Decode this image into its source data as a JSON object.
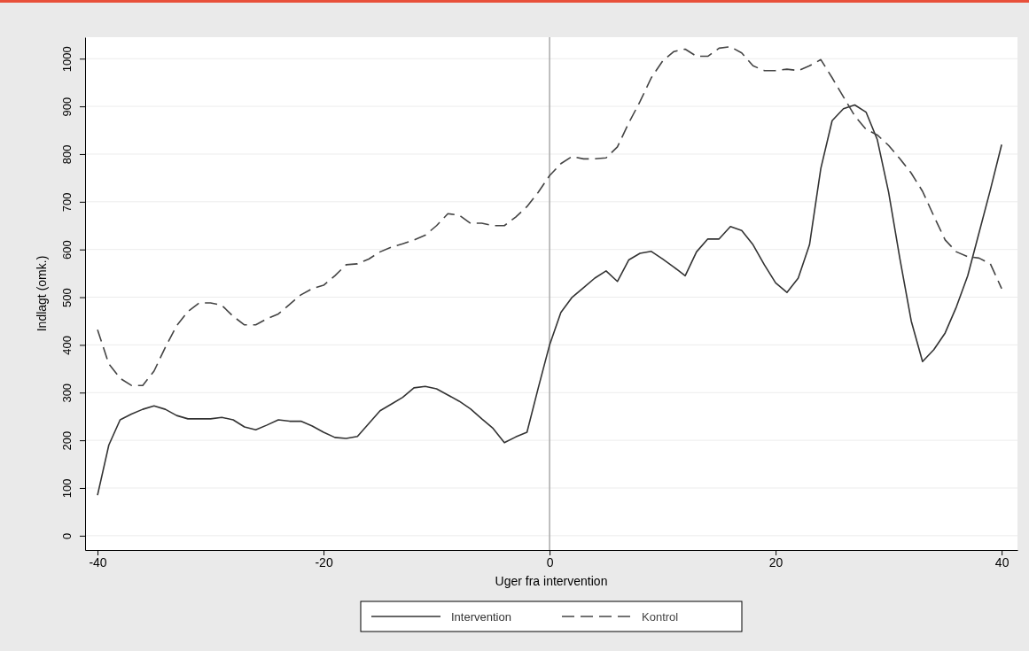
{
  "chart_data": {
    "type": "line",
    "xlabel": "Uger fra intervention",
    "ylabel": "Indlagt (omk.)",
    "x": [
      -40,
      -39,
      -38,
      -37,
      -36,
      -35,
      -34,
      -33,
      -32,
      -31,
      -30,
      -29,
      -28,
      -27,
      -26,
      -25,
      -24,
      -23,
      -22,
      -21,
      -20,
      -19,
      -18,
      -17,
      -16,
      -15,
      -14,
      -13,
      -12,
      -11,
      -10,
      -9,
      -8,
      -7,
      -6,
      -5,
      -4,
      -3,
      -2,
      -1,
      0,
      1,
      2,
      3,
      4,
      5,
      6,
      7,
      8,
      9,
      10,
      11,
      12,
      13,
      14,
      15,
      16,
      17,
      18,
      19,
      20,
      21,
      22,
      23,
      24,
      25,
      26,
      27,
      28,
      29,
      30,
      31,
      32,
      33,
      34,
      35,
      36,
      37,
      38,
      39,
      40
    ],
    "series": [
      {
        "name": "Intervention",
        "color": "#333333",
        "line_style": "solid",
        "values": [
          85,
          190,
          243,
          255,
          265,
          272,
          265,
          252,
          245,
          245,
          245,
          248,
          243,
          228,
          222,
          232,
          243,
          240,
          240,
          230,
          217,
          206,
          204,
          208,
          235,
          262,
          276,
          290,
          310,
          313,
          308,
          295,
          282,
          266,
          245,
          225,
          195,
          207,
          217,
          310,
          400,
          468,
          500,
          520,
          540,
          555,
          533,
          578,
          592,
          596,
          580,
          563,
          545,
          595,
          622,
          622,
          648,
          640,
          610,
          568,
          530,
          510,
          540,
          610,
          770,
          870,
          895,
          903,
          888,
          830,
          720,
          580,
          450,
          365,
          390,
          425,
          480,
          545,
          635,
          725,
          820
        ]
      },
      {
        "name": "Kontrol",
        "color": "#444444",
        "line_style": "dashed",
        "values": [
          432,
          360,
          330,
          315,
          315,
          345,
          395,
          440,
          470,
          488,
          488,
          483,
          460,
          442,
          442,
          455,
          465,
          485,
          505,
          518,
          525,
          545,
          568,
          570,
          580,
          595,
          605,
          612,
          620,
          630,
          650,
          675,
          672,
          655,
          655,
          650,
          650,
          668,
          690,
          720,
          755,
          780,
          795,
          790,
          790,
          792,
          815,
          865,
          910,
          960,
          995,
          1015,
          1020,
          1005,
          1005,
          1022,
          1025,
          1012,
          985,
          975,
          975,
          978,
          975,
          985,
          998,
          960,
          920,
          880,
          852,
          840,
          818,
          790,
          760,
          722,
          670,
          620,
          595,
          585,
          582,
          570,
          518
        ]
      }
    ],
    "xlim": [
      -41.1,
      41.4
    ],
    "xticks": [
      -40,
      -20,
      0,
      20,
      40
    ],
    "ylim": [
      -30,
      1045
    ],
    "yticks": [
      0,
      100,
      200,
      300,
      400,
      500,
      600,
      700,
      800,
      900,
      1000
    ],
    "grid": "y",
    "legend": "bottom",
    "marker": "none",
    "ref_lines": [
      {
        "axis": "x",
        "value": 0,
        "color": "#aaaaaa"
      }
    ]
  }
}
